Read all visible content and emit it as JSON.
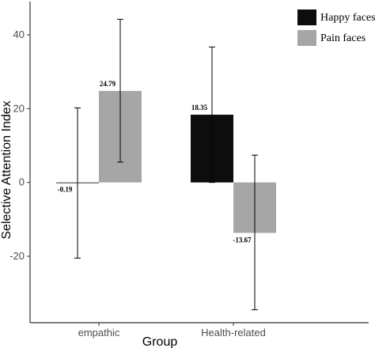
{
  "chart_data": {
    "type": "bar",
    "title": "",
    "xlabel": "Group",
    "ylabel": "Selective Attention Index",
    "categories": [
      "empathic",
      "Health-related"
    ],
    "ylim": [
      -38,
      49
    ],
    "yticks": [
      -20,
      0,
      20,
      40
    ],
    "grid": false,
    "legend_position": "top-right",
    "series": [
      {
        "name": "Happy faces",
        "color": "#0d0d0d",
        "values": [
          -0.19,
          18.35
        ],
        "labels": [
          "-0.19",
          "18.35"
        ],
        "error_low": [
          -20.5,
          0.0
        ],
        "error_high": [
          20.2,
          36.7
        ]
      },
      {
        "name": "Pain faces",
        "color": "#a6a6a6",
        "values": [
          24.79,
          -13.67
        ],
        "labels": [
          "24.79",
          "-13.67"
        ],
        "error_low": [
          5.5,
          -34.5
        ],
        "error_high": [
          44.2,
          7.4
        ]
      }
    ]
  }
}
